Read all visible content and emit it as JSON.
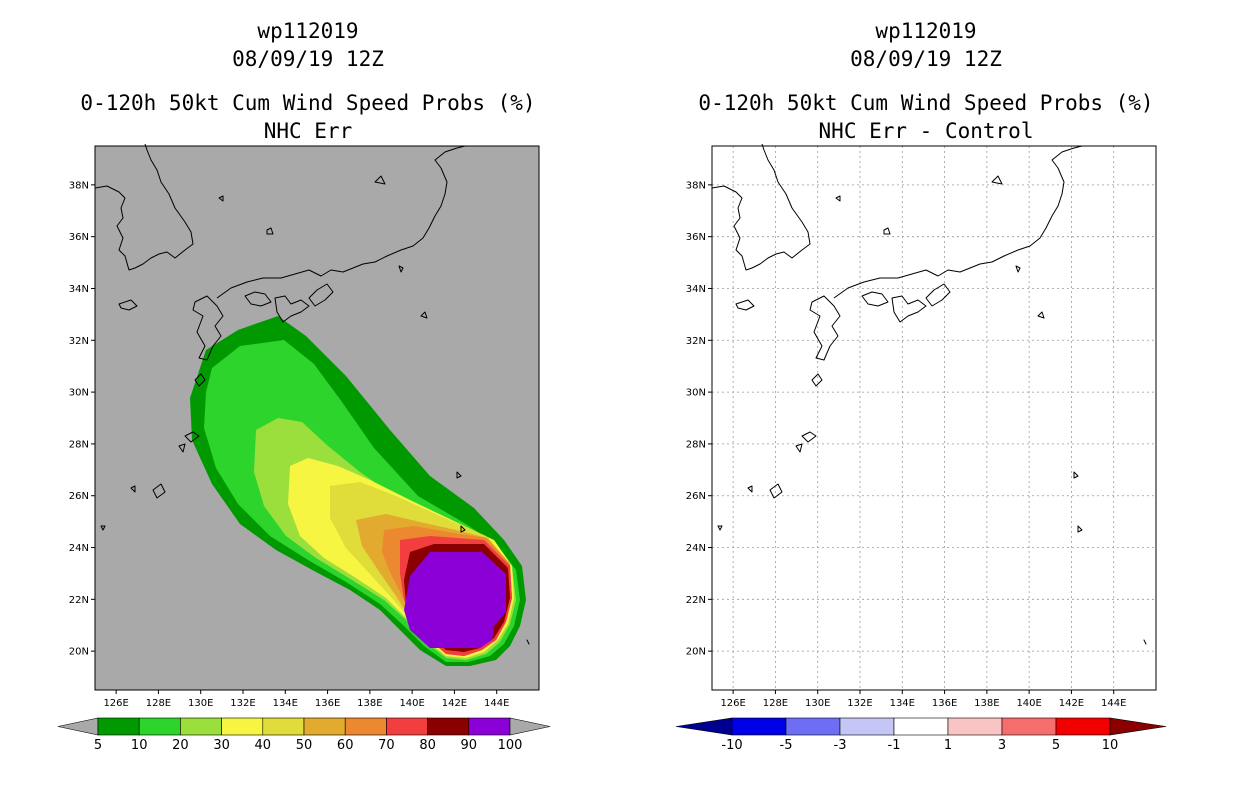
{
  "left_panel": {
    "title_line1": "wp112019",
    "title_line2": "08/09/19 12Z",
    "title_line3": "0-120h 50kt Cum Wind Speed Probs (%)",
    "title_line4": "NHC Err"
  },
  "right_panel": {
    "title_line1": "wp112019",
    "title_line2": "08/09/19 12Z",
    "title_line3": "0-120h 50kt Cum Wind Speed Probs (%)",
    "title_line4": "NHC Err - Control"
  },
  "map": {
    "lat_labels": [
      "38N",
      "36N",
      "34N",
      "32N",
      "30N",
      "28N",
      "26N",
      "24N",
      "22N",
      "20N"
    ],
    "lon_labels": [
      "126E",
      "128E",
      "130E",
      "132E",
      "134E",
      "136E",
      "138E",
      "140E",
      "142E",
      "144E"
    ],
    "lat_values": [
      38,
      36,
      34,
      32,
      30,
      28,
      26,
      24,
      22,
      20
    ],
    "lon_values": [
      126,
      128,
      130,
      132,
      134,
      136,
      138,
      140,
      142,
      144
    ],
    "lon_range": [
      125,
      146
    ],
    "lat_range": [
      18.5,
      39.5
    ],
    "left_background": "#a9a9a9",
    "right_background": "#ffffff"
  },
  "left_colorbar": {
    "labels": [
      "5",
      "10",
      "20",
      "30",
      "40",
      "50",
      "60",
      "70",
      "80",
      "90",
      "100"
    ],
    "colors": [
      "#009a00",
      "#2cd42c",
      "#9bdf3c",
      "#f5f542",
      "#e0dc3a",
      "#e2ab30",
      "#ec8830",
      "#f23e3e",
      "#8a0000",
      "#8a00d6"
    ],
    "end_color": "#a9a9a9"
  },
  "right_colorbar": {
    "labels": [
      "-10",
      "-5",
      "-3",
      "-1",
      "1",
      "3",
      "5",
      "10"
    ],
    "colors": [
      "#0000e6",
      "#6e6ef5",
      "#c6c6f6",
      "#ffffff",
      "#f8c4c4",
      "#f56e6e",
      "#f20000"
    ],
    "end_low": "#000090",
    "end_high": "#8a0000"
  }
}
